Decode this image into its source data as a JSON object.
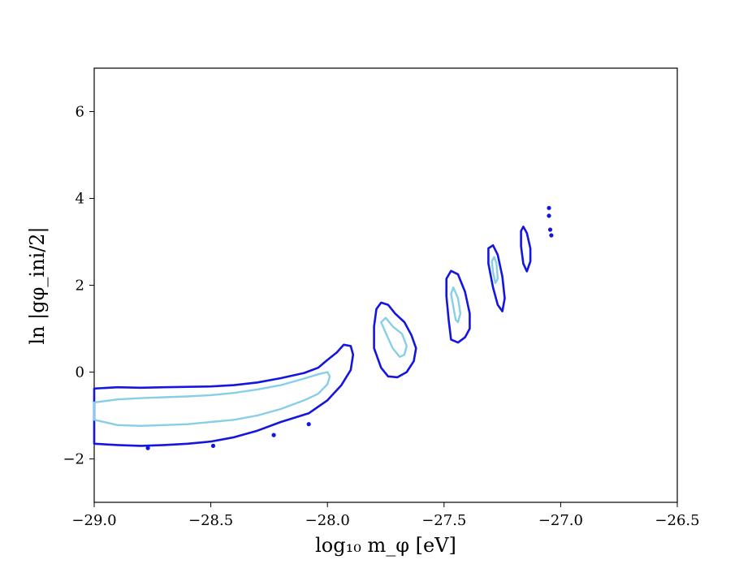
{
  "chart_data": {
    "type": "contour",
    "xlabel": "log₁₀ m_φ [eV]",
    "ylabel": "ln |gφ_ini/2|",
    "xlim": [
      -29.0,
      -26.5
    ],
    "ylim": [
      -3.0,
      7.0
    ],
    "xticks": [
      -29.0,
      -28.5,
      -28.0,
      -27.5,
      -27.0,
      -26.5
    ],
    "xtick_labels": [
      "−29.0",
      "−28.5",
      "−28.0",
      "−27.5",
      "−27.0",
      "−26.5"
    ],
    "yticks": [
      -2,
      0,
      2,
      4,
      6
    ],
    "ytick_labels": [
      "−2",
      "0",
      "2",
      "4",
      "6"
    ],
    "grid": false,
    "colors": {
      "outer": "#1515e0",
      "inner": "#87cfe8",
      "axes": "#000000"
    },
    "series": [
      {
        "values": [
          [
            [
              -29.0,
              -0.38
            ],
            [
              -28.9,
              -0.35
            ],
            [
              -28.8,
              -0.36
            ],
            [
              -28.7,
              -0.35
            ],
            [
              -28.6,
              -0.34
            ],
            [
              -28.5,
              -0.33
            ],
            [
              -28.4,
              -0.3
            ],
            [
              -28.3,
              -0.24
            ],
            [
              -28.2,
              -0.14
            ],
            [
              -28.1,
              -0.02
            ],
            [
              -28.04,
              0.1
            ],
            [
              -28.0,
              0.28
            ],
            [
              -27.96,
              0.45
            ],
            [
              -27.93,
              0.63
            ],
            [
              -27.9,
              0.6
            ],
            [
              -27.89,
              0.4
            ],
            [
              -27.9,
              0.05
            ],
            [
              -27.94,
              -0.3
            ],
            [
              -28.0,
              -0.65
            ],
            [
              -28.08,
              -0.95
            ],
            [
              -28.2,
              -1.15
            ],
            [
              -28.3,
              -1.35
            ],
            [
              -28.4,
              -1.5
            ],
            [
              -28.5,
              -1.6
            ],
            [
              -28.6,
              -1.65
            ],
            [
              -28.7,
              -1.68
            ],
            [
              -28.8,
              -1.7
            ],
            [
              -28.9,
              -1.68
            ],
            [
              -29.0,
              -1.65
            ]
          ],
          [
            [
              -27.77,
              1.6
            ],
            [
              -27.74,
              1.55
            ],
            [
              -27.71,
              1.35
            ],
            [
              -27.67,
              1.15
            ],
            [
              -27.64,
              0.85
            ],
            [
              -27.62,
              0.55
            ],
            [
              -27.63,
              0.25
            ],
            [
              -27.66,
              0.0
            ],
            [
              -27.7,
              -0.12
            ],
            [
              -27.74,
              -0.1
            ],
            [
              -27.77,
              0.1
            ],
            [
              -27.8,
              0.55
            ],
            [
              -27.8,
              1.05
            ],
            [
              -27.79,
              1.45
            ]
          ],
          [
            [
              -27.47,
              2.33
            ],
            [
              -27.44,
              2.25
            ],
            [
              -27.41,
              1.85
            ],
            [
              -27.39,
              1.35
            ],
            [
              -27.39,
              1.0
            ],
            [
              -27.41,
              0.8
            ],
            [
              -27.44,
              0.68
            ],
            [
              -27.47,
              0.75
            ],
            [
              -27.48,
              1.2
            ],
            [
              -27.49,
              1.75
            ],
            [
              -27.49,
              2.15
            ]
          ],
          [
            [
              -27.29,
              2.92
            ],
            [
              -27.27,
              2.7
            ],
            [
              -27.25,
              2.2
            ],
            [
              -27.24,
              1.7
            ],
            [
              -27.25,
              1.4
            ],
            [
              -27.27,
              1.55
            ],
            [
              -27.29,
              1.95
            ],
            [
              -27.31,
              2.5
            ],
            [
              -27.31,
              2.85
            ]
          ],
          [
            [
              -27.16,
              3.35
            ],
            [
              -27.145,
              3.2
            ],
            [
              -27.13,
              2.85
            ],
            [
              -27.13,
              2.55
            ],
            [
              -27.145,
              2.32
            ],
            [
              -27.16,
              2.5
            ],
            [
              -27.17,
              2.9
            ],
            [
              -27.17,
              3.25
            ]
          ]
        ]
      },
      {
        "values": [
          [
            [
              -29.0,
              -0.7
            ],
            [
              -28.9,
              -0.63
            ],
            [
              -28.8,
              -0.6
            ],
            [
              -28.7,
              -0.58
            ],
            [
              -28.6,
              -0.56
            ],
            [
              -28.5,
              -0.53
            ],
            [
              -28.4,
              -0.48
            ],
            [
              -28.3,
              -0.4
            ],
            [
              -28.2,
              -0.3
            ],
            [
              -28.1,
              -0.15
            ],
            [
              -28.04,
              -0.05
            ],
            [
              -28.0,
              0.0
            ],
            [
              -27.99,
              -0.1
            ],
            [
              -28.0,
              -0.28
            ],
            [
              -28.04,
              -0.5
            ],
            [
              -28.1,
              -0.65
            ],
            [
              -28.2,
              -0.85
            ],
            [
              -28.3,
              -1.0
            ],
            [
              -28.4,
              -1.1
            ],
            [
              -28.5,
              -1.15
            ],
            [
              -28.6,
              -1.2
            ],
            [
              -28.7,
              -1.22
            ],
            [
              -28.8,
              -1.24
            ],
            [
              -28.9,
              -1.22
            ],
            [
              -29.0,
              -1.1
            ]
          ],
          [
            [
              -27.75,
              1.25
            ],
            [
              -27.72,
              1.05
            ],
            [
              -27.68,
              0.88
            ],
            [
              -27.66,
              0.6
            ],
            [
              -27.67,
              0.4
            ],
            [
              -27.69,
              0.35
            ],
            [
              -27.72,
              0.55
            ],
            [
              -27.75,
              0.9
            ],
            [
              -27.77,
              1.15
            ]
          ],
          [
            [
              -27.46,
              1.95
            ],
            [
              -27.44,
              1.7
            ],
            [
              -27.43,
              1.35
            ],
            [
              -27.44,
              1.15
            ],
            [
              -27.45,
              1.2
            ],
            [
              -27.46,
              1.5
            ],
            [
              -27.47,
              1.8
            ]
          ],
          [
            [
              -27.285,
              2.65
            ],
            [
              -27.275,
              2.5
            ],
            [
              -27.27,
              2.15
            ],
            [
              -27.28,
              2.05
            ],
            [
              -27.29,
              2.3
            ],
            [
              -27.295,
              2.55
            ]
          ]
        ]
      }
    ],
    "points": [
      [
        -27.05,
        3.78
      ],
      [
        -27.05,
        3.6
      ],
      [
        -27.045,
        3.28
      ],
      [
        -27.04,
        3.15
      ],
      [
        -28.77,
        -1.75
      ],
      [
        -28.49,
        -1.7
      ],
      [
        -28.23,
        -1.45
      ],
      [
        -28.08,
        -1.2
      ]
    ]
  }
}
